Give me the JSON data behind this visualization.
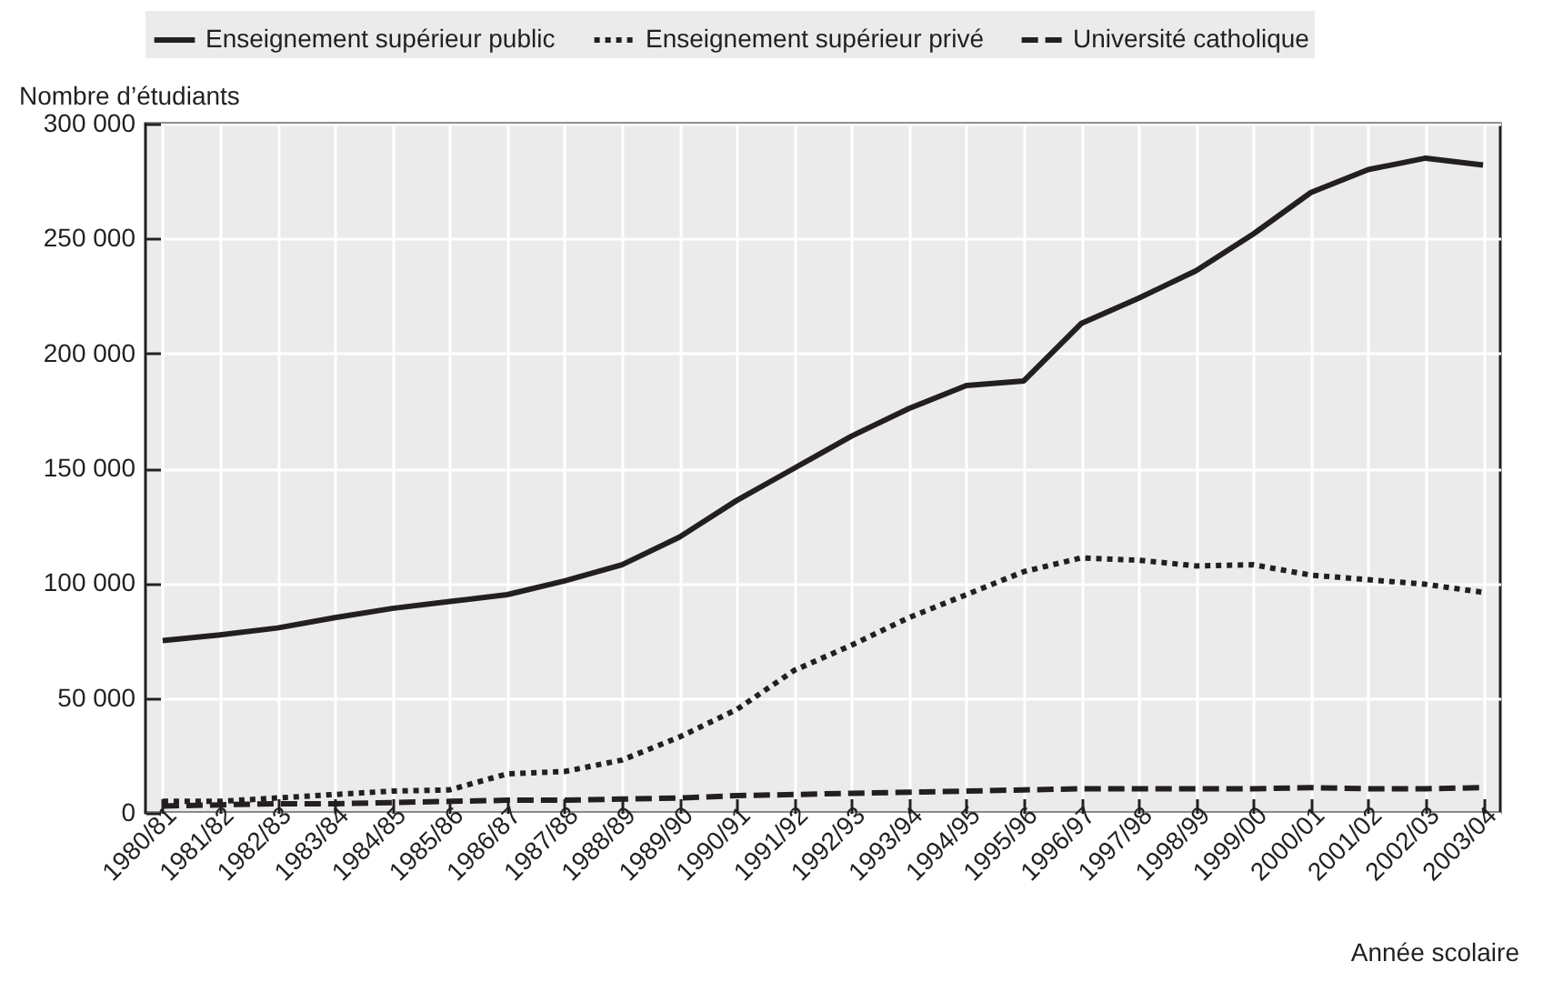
{
  "chart_data": {
    "type": "line",
    "xlabel": "Année scolaire",
    "ylabel": "Nombre d’étudiants",
    "categories": [
      "1980/81",
      "1981/82",
      "1982/83",
      "1983/84",
      "1984/85",
      "1985/86",
      "1986/87",
      "1987/88",
      "1988/89",
      "1989/90",
      "1990/91",
      "1991/92",
      "1992/93",
      "1993/94",
      "1994/95",
      "1995/96",
      "1996/97",
      "1997/98",
      "1998/99",
      "1999/00",
      "2000/01",
      "2001/02",
      "2002/03",
      "2003/04"
    ],
    "series": [
      {
        "name": "Enseignement supérieur public",
        "color": "#231f20",
        "line_style": "solid",
        "values": [
          75000,
          77500,
          80500,
          85000,
          89000,
          92000,
          95000,
          101000,
          108000,
          120000,
          136000,
          150000,
          164000,
          176000,
          186000,
          188000,
          213000,
          224000,
          236000,
          252000,
          270000,
          280000,
          285000,
          282000
        ]
      },
      {
        "name": "Enseignement supérieur privé",
        "color": "#231f20",
        "line_style": "dotted",
        "values": [
          5000,
          5000,
          6500,
          8000,
          9500,
          10000,
          17000,
          18000,
          23000,
          33000,
          45000,
          62000,
          73000,
          85000,
          95000,
          105000,
          111000,
          110000,
          107500,
          108000,
          103500,
          101500,
          99500,
          96000
        ]
      },
      {
        "name": "Université catholique",
        "color": "#231f20",
        "line_style": "dashed",
        "values": [
          3000,
          3500,
          4000,
          4000,
          4500,
          5000,
          5500,
          5500,
          6000,
          6500,
          7500,
          8000,
          8500,
          9000,
          9500,
          10000,
          10500,
          10500,
          10500,
          10500,
          11000,
          10500,
          10500,
          11000
        ]
      }
    ],
    "ylim": [
      0,
      300000
    ],
    "yticks": [
      {
        "value": 0,
        "label": "0"
      },
      {
        "value": 50000,
        "label": "50 000"
      },
      {
        "value": 100000,
        "label": "100 000"
      },
      {
        "value": 150000,
        "label": "150 000"
      },
      {
        "value": 200000,
        "label": "200 000"
      },
      {
        "value": 250000,
        "label": "250 000"
      },
      {
        "value": 300000,
        "label": "300 000"
      }
    ],
    "grid": true,
    "legend": "top"
  }
}
